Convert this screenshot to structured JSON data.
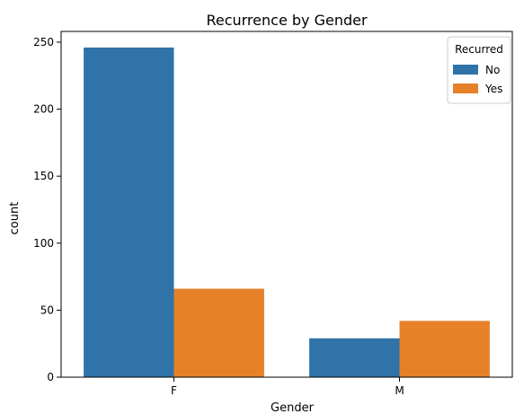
{
  "chart_data": {
    "type": "bar",
    "title": "Recurrence by Gender",
    "xlabel": "Gender",
    "ylabel": "count",
    "categories": [
      "F",
      "M"
    ],
    "series": [
      {
        "name": "No",
        "values": [
          246,
          29
        ],
        "color": "#2f73a8"
      },
      {
        "name": "Yes",
        "values": [
          66,
          42
        ],
        "color": "#e6812a"
      }
    ],
    "ylim": [
      0,
      258
    ],
    "yticks": [
      0,
      50,
      100,
      150,
      200,
      250
    ],
    "legend": {
      "title": "Recurred",
      "position": "top-right"
    },
    "grid": false
  }
}
